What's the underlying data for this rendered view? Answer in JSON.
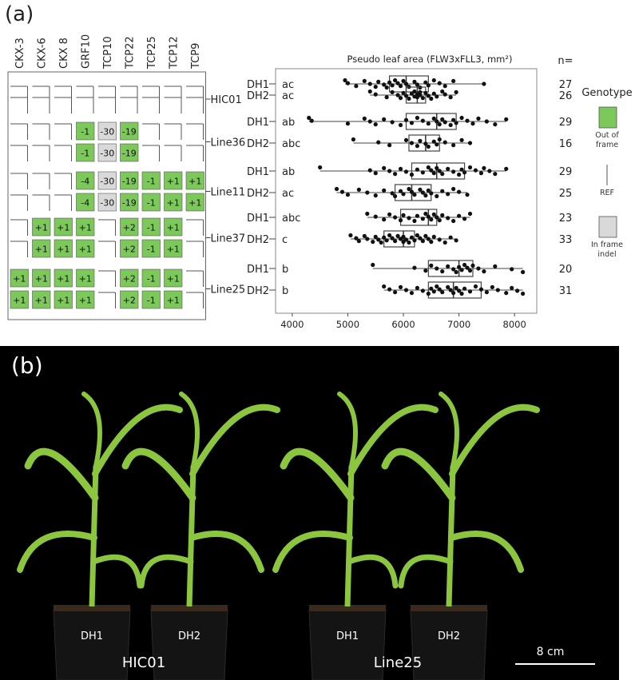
{
  "panel_a_label": "(a)",
  "panel_b_label": "(b)",
  "genes": [
    "CKX-3",
    "CKX-6",
    "CKX 8",
    "GRF10",
    "TCP10",
    "TCP22",
    "TCP25",
    "TCP12",
    "TCP9"
  ],
  "lines": [
    {
      "name": "HIC01",
      "rows": [
        {
          "haplotype": "DH1",
          "letter": "ac",
          "n": "27",
          "cells": [
            "ref",
            "ref",
            "ref",
            "ref",
            "ref",
            "ref",
            "ref",
            "ref",
            "ref"
          ]
        },
        {
          "haplotype": "DH2",
          "letter": "ac",
          "n": "26",
          "cells": [
            "ref",
            "ref",
            "ref",
            "ref",
            "ref",
            "ref",
            "ref",
            "ref",
            "ref"
          ]
        }
      ]
    },
    {
      "name": "Line36",
      "rows": [
        {
          "haplotype": "DH1",
          "letter": "ab",
          "n": "29",
          "cells": [
            "ref",
            "ref",
            "ref",
            "oof:-1",
            "inf:-30",
            "oof:-19",
            "ref",
            "ref",
            "ref"
          ]
        },
        {
          "haplotype": "DH2",
          "letter": "abc",
          "n": "16",
          "cells": [
            "ref",
            "ref",
            "ref",
            "oof:-1",
            "inf:-30",
            "oof:-19",
            "ref",
            "ref",
            "ref"
          ]
        }
      ]
    },
    {
      "name": "Line11",
      "rows": [
        {
          "haplotype": "DH1",
          "letter": "ab",
          "n": "29",
          "cells": [
            "ref",
            "ref",
            "ref",
            "oof:-4",
            "inf:-30",
            "oof:-19",
            "oof:-1",
            "oof:+1",
            "oof:+1"
          ]
        },
        {
          "haplotype": "DH2",
          "letter": "ac",
          "n": "25",
          "cells": [
            "ref",
            "ref",
            "ref",
            "oof:-4",
            "inf:-30",
            "oof:-19",
            "oof:-1",
            "oof:+1",
            "oof:+1"
          ]
        }
      ]
    },
    {
      "name": "Line37",
      "rows": [
        {
          "haplotype": "DH1",
          "letter": "abc",
          "n": "23",
          "cells": [
            "ref",
            "oof:+1",
            "oof:+1",
            "oof:+1",
            "ref",
            "oof:+2",
            "oof:-1",
            "oof:+1",
            "ref"
          ]
        },
        {
          "haplotype": "DH2",
          "letter": "c",
          "n": "33",
          "cells": [
            "ref",
            "oof:+1",
            "oof:+1",
            "oof:+1",
            "ref",
            "oof:+2",
            "oof:-1",
            "oof:+1",
            "ref"
          ]
        }
      ]
    },
    {
      "name": "Line25",
      "rows": [
        {
          "haplotype": "DH1",
          "letter": "b",
          "n": "20",
          "cells": [
            "oof:+1",
            "oof:+1",
            "oof:+1",
            "oof:+1",
            "ref",
            "oof:+2",
            "oof:-1",
            "oof:+1",
            "ref"
          ]
        },
        {
          "haplotype": "DH2",
          "letter": "b",
          "n": "31",
          "cells": [
            "oof:+1",
            "oof:+1",
            "oof:+1",
            "oof:+1",
            "ref",
            "oof:+2",
            "oof:-1",
            "oof:+1",
            "ref"
          ]
        }
      ]
    }
  ],
  "legend": {
    "title": "Genotype",
    "items": [
      {
        "key": "oof",
        "label_lines": [
          "Out of",
          "frame"
        ]
      },
      {
        "key": "ref",
        "label_lines": [
          "REF"
        ]
      },
      {
        "key": "inf",
        "label_lines": [
          "In frame",
          "indel"
        ]
      }
    ]
  },
  "colors": {
    "oof": "#7dc85a",
    "inf": "#d9d9d9",
    "ref": "#ffffff",
    "photo_bg": "#000000",
    "plant": "#8cc63f"
  },
  "chart_data": {
    "type": "box",
    "title": "Pseudo leaf area (FLW3xFLL3, mm²)",
    "n_header": "n=",
    "xlim": [
      3700,
      8400
    ],
    "xticks": [
      4000,
      5000,
      6000,
      7000,
      8000
    ],
    "groups": [
      {
        "label": "DH1",
        "letter": "ac",
        "n": "27",
        "q1": 5750,
        "median": 6050,
        "q3": 6450,
        "whisker_low": 4950,
        "whisker_high": 7450,
        "points": [
          4950,
          5000,
          5150,
          5300,
          5400,
          5500,
          5550,
          5650,
          5700,
          5750,
          5800,
          5850,
          5900,
          5950,
          6000,
          6050,
          6100,
          6200,
          6250,
          6300,
          6400,
          6450,
          6550,
          6650,
          6750,
          6900,
          7450
        ]
      },
      {
        "label": "DH2",
        "letter": "ac",
        "n": "26",
        "q1": 6050,
        "median": 6250,
        "q3": 6400,
        "whisker_low": 5400,
        "whisker_high": 6950,
        "points": [
          5400,
          5500,
          5700,
          5800,
          5900,
          5950,
          6000,
          6050,
          6100,
          6150,
          6200,
          6200,
          6250,
          6250,
          6300,
          6300,
          6350,
          6400,
          6450,
          6500,
          6550,
          6600,
          6700,
          6750,
          6850,
          6950
        ]
      },
      {
        "label": "DH1",
        "letter": "ab",
        "n": "29",
        "q1": 6050,
        "median": 6600,
        "q3": 6950,
        "whisker_low": 4300,
        "whisker_high": 7850,
        "points": [
          4300,
          4350,
          5000,
          5300,
          5400,
          5500,
          5650,
          5800,
          5950,
          6050,
          6150,
          6250,
          6350,
          6450,
          6550,
          6600,
          6650,
          6700,
          6750,
          6850,
          6900,
          6950,
          7050,
          7150,
          7250,
          7350,
          7500,
          7650,
          7850
        ]
      },
      {
        "label": "DH2",
        "letter": "abc",
        "n": "16",
        "q1": 6100,
        "median": 6400,
        "q3": 6650,
        "whisker_low": 5100,
        "whisker_high": 7200,
        "points": [
          5100,
          5550,
          5750,
          6050,
          6150,
          6250,
          6300,
          6400,
          6450,
          6550,
          6600,
          6650,
          6750,
          6900,
          7050,
          7200
        ]
      },
      {
        "label": "DH1",
        "letter": "ab",
        "n": "29",
        "q1": 6150,
        "median": 6600,
        "q3": 7100,
        "whisker_low": 4500,
        "whisker_high": 7850,
        "points": [
          4500,
          5400,
          5500,
          5650,
          5750,
          5850,
          5950,
          6050,
          6150,
          6250,
          6350,
          6450,
          6500,
          6550,
          6600,
          6650,
          6700,
          6800,
          6900,
          7000,
          7050,
          7100,
          7200,
          7300,
          7400,
          7450,
          7550,
          7650,
          7850
        ]
      },
      {
        "label": "DH2",
        "letter": "ac",
        "n": "25",
        "q1": 5850,
        "median": 6150,
        "q3": 6500,
        "whisker_low": 4800,
        "whisker_high": 7150,
        "points": [
          4800,
          4900,
          5000,
          5200,
          5350,
          5500,
          5650,
          5800,
          5850,
          5950,
          6000,
          6100,
          6150,
          6200,
          6300,
          6350,
          6400,
          6450,
          6500,
          6600,
          6700,
          6800,
          6900,
          7000,
          7150
        ]
      },
      {
        "label": "DH1",
        "letter": "abc",
        "n": "23",
        "q1": 5950,
        "median": 6450,
        "q3": 6600,
        "whisker_low": 5350,
        "whisker_high": 7200,
        "points": [
          5350,
          5500,
          5650,
          5750,
          5850,
          5950,
          6000,
          6100,
          6200,
          6250,
          6350,
          6400,
          6450,
          6500,
          6550,
          6600,
          6650,
          6700,
          6800,
          6900,
          7000,
          7100,
          7200
        ]
      },
      {
        "label": "DH2",
        "letter": "c",
        "n": "33",
        "q1": 5650,
        "median": 6000,
        "q3": 6200,
        "whisker_low": 5050,
        "whisker_high": 6950,
        "points": [
          5050,
          5150,
          5200,
          5300,
          5350,
          5450,
          5500,
          5550,
          5600,
          5650,
          5700,
          5750,
          5800,
          5850,
          5900,
          5950,
          6000,
          6000,
          6050,
          6100,
          6150,
          6200,
          6250,
          6300,
          6350,
          6400,
          6450,
          6500,
          6550,
          6650,
          6750,
          6850,
          6950
        ]
      },
      {
        "label": "DH1",
        "letter": "b",
        "n": "20",
        "q1": 6450,
        "median": 7000,
        "q3": 7250,
        "whisker_low": 5450,
        "whisker_high": 8150,
        "points": [
          5450,
          6200,
          6400,
          6500,
          6600,
          6700,
          6800,
          6900,
          6950,
          7000,
          7050,
          7100,
          7150,
          7200,
          7250,
          7350,
          7450,
          7650,
          7950,
          8150
        ]
      },
      {
        "label": "DH2",
        "letter": "b",
        "n": "31",
        "q1": 6450,
        "median": 6900,
        "q3": 7400,
        "whisker_low": 5650,
        "whisker_high": 8150,
        "points": [
          5650,
          5750,
          5850,
          5950,
          6050,
          6150,
          6250,
          6350,
          6450,
          6500,
          6550,
          6600,
          6650,
          6700,
          6800,
          6850,
          6900,
          6950,
          7000,
          7050,
          7100,
          7200,
          7300,
          7400,
          7500,
          7600,
          7700,
          7850,
          7950,
          8050,
          8150
        ]
      }
    ]
  },
  "photo": {
    "plants": [
      {
        "label": "DH1",
        "leaf_color": "#8cc63f"
      },
      {
        "label": "DH2",
        "leaf_color": "#8cc63f"
      },
      {
        "label": "DH1",
        "leaf_color": "#8cc63f"
      },
      {
        "label": "DH2",
        "leaf_color": "#8cc63f"
      }
    ],
    "group_labels": [
      "HIC01",
      "Line25"
    ],
    "scale_label": "8 cm"
  }
}
